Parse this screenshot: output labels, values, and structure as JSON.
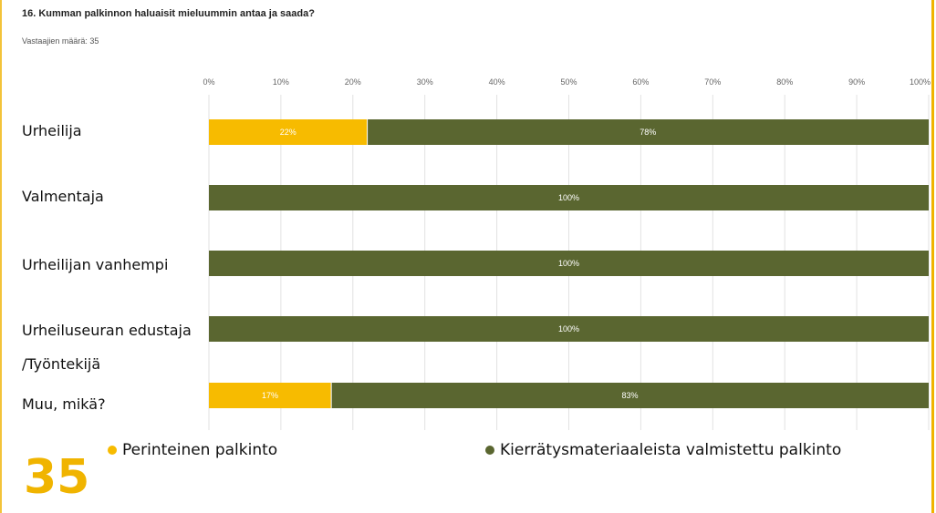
{
  "header": {
    "title": "16. Kumman palkinnon haluaisit mieluummin antaa ja saada?",
    "respondents": "Vastaajien määrä: 35"
  },
  "big_number": "35",
  "colors": {
    "traditional": "#f7bb00",
    "recycled": "#5a6630",
    "frame": "#f0b400"
  },
  "chart_data": {
    "type": "bar",
    "orientation": "horizontal",
    "stacked": true,
    "categories": [
      "Urheilija",
      "Valmentaja",
      "Urheilijan vanhempi",
      "Urheiluseuran edustaja /Työntekijä",
      "Muu, mikä?"
    ],
    "category_lines": [
      [
        "Urheilija"
      ],
      [
        "Valmentaja"
      ],
      [
        "Urheilijan vanhempi"
      ],
      [
        "Urheiluseuran edustaja",
        "/Työntekijä"
      ],
      [
        "Muu, mikä?"
      ]
    ],
    "series": [
      {
        "name": "Perinteinen palkinto",
        "values": [
          22,
          0,
          0,
          0,
          17
        ],
        "color": "#f7bb00"
      },
      {
        "name": "Kierrätysmateriaaleista valmistettu palkinto",
        "values": [
          78,
          100,
          100,
          100,
          83
        ],
        "color": "#5a6630"
      }
    ],
    "xticks": [
      "0%",
      "10%",
      "20%",
      "30%",
      "40%",
      "50%",
      "60%",
      "70%",
      "80%",
      "90%",
      "100%"
    ],
    "xlim": [
      0,
      100
    ],
    "grid": true,
    "legend": "bottom"
  }
}
